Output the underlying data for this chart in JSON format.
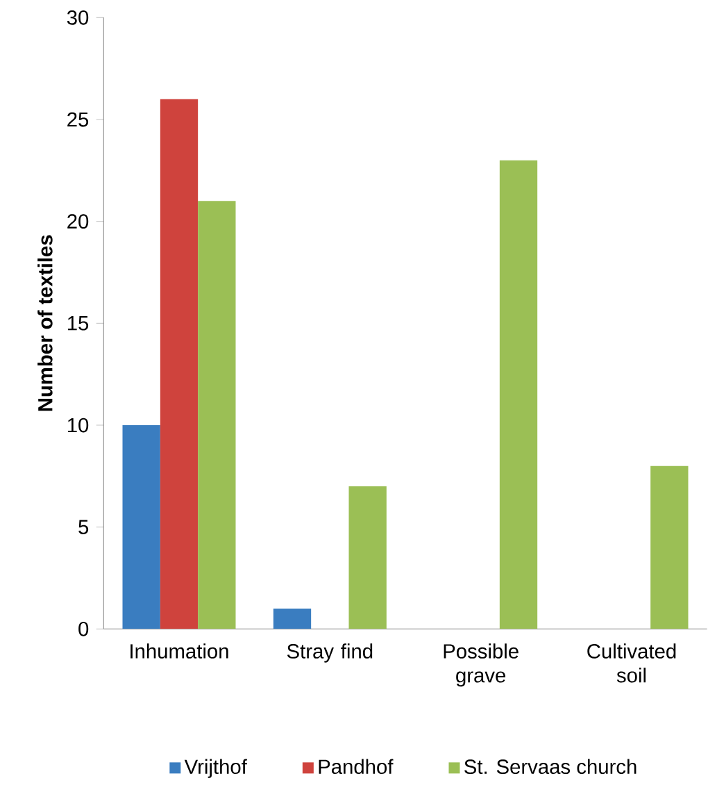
{
  "chart_data": {
    "type": "bar",
    "ylabel": "Number of textiles",
    "categories": [
      "Inhumation",
      "Stray find",
      "Possible grave",
      "Cultivated soil"
    ],
    "series": [
      {
        "name": "Vrijthof",
        "color": "#3a7dc0",
        "values": [
          10,
          1,
          0,
          0
        ]
      },
      {
        "name": "Pandhof",
        "color": "#cf433d",
        "values": [
          26,
          0,
          0,
          0
        ]
      },
      {
        "name": "St. Servaas church",
        "color": "#9bbf55",
        "values": [
          21,
          7,
          23,
          8
        ]
      }
    ],
    "ylim": [
      0,
      30
    ],
    "yticks": [
      0,
      5,
      10,
      15,
      20,
      25,
      30
    ],
    "legend": "bottom"
  }
}
